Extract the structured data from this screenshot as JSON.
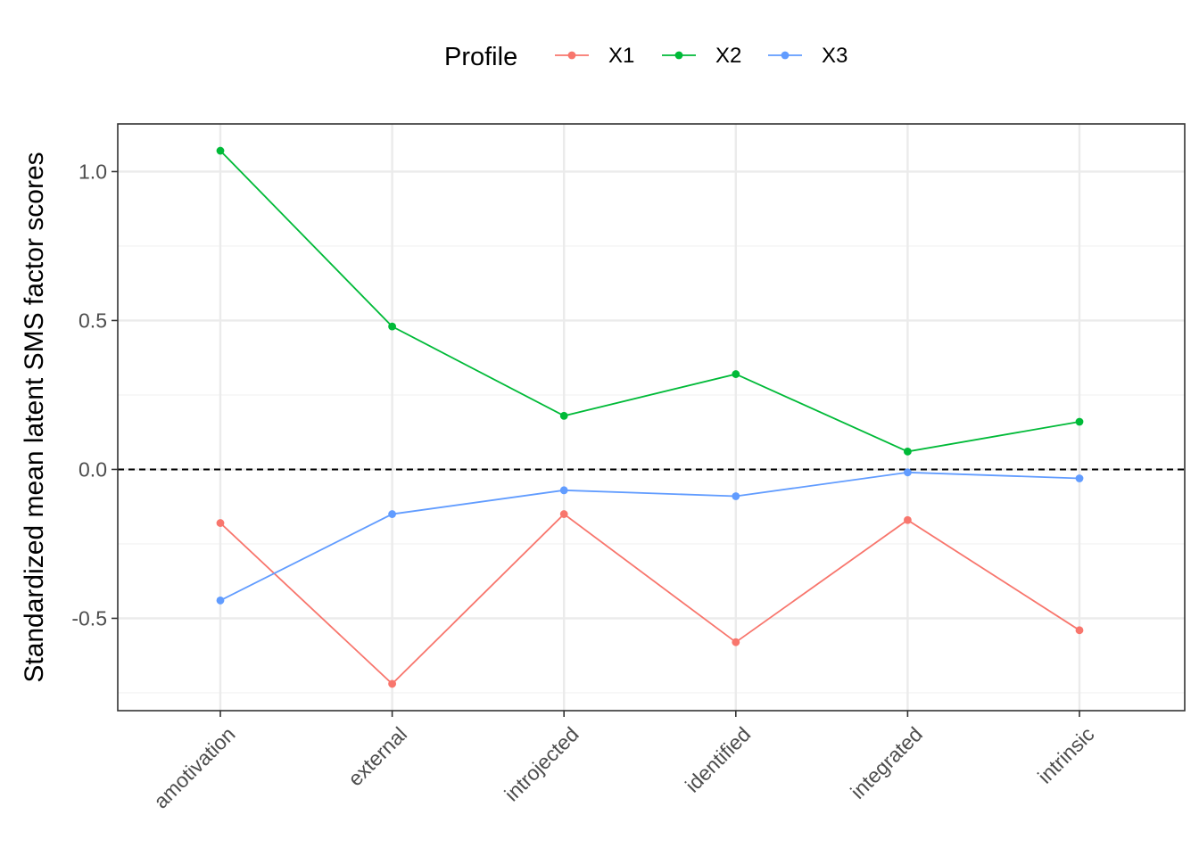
{
  "chart_data": {
    "type": "line",
    "categories": [
      "amotivation",
      "external",
      "introjected",
      "identified",
      "integrated",
      "intrinsic"
    ],
    "series": [
      {
        "name": "X1",
        "color": "#F8766D",
        "values": [
          -0.18,
          -0.72,
          -0.15,
          -0.58,
          -0.17,
          -0.54
        ]
      },
      {
        "name": "X2",
        "color": "#00BA38",
        "values": [
          1.07,
          0.48,
          0.18,
          0.32,
          0.06,
          0.16
        ]
      },
      {
        "name": "X3",
        "color": "#619CFF",
        "values": [
          -0.44,
          -0.15,
          -0.07,
          -0.09,
          -0.01,
          -0.03
        ]
      }
    ],
    "xlabel": "",
    "ylabel": "Standardized mean latent SMS factor scores",
    "ylim": [
      -0.81,
      1.16
    ],
    "yticks": [
      1.0,
      0.5,
      0.0,
      -0.5
    ],
    "ytick_labels": [
      "1.0",
      "0.5",
      "0.0",
      "-0.5"
    ],
    "reference_line": {
      "y": 0.0,
      "style": "dashed"
    },
    "legend": {
      "title": "Profile",
      "position": "top"
    },
    "grid": true
  }
}
